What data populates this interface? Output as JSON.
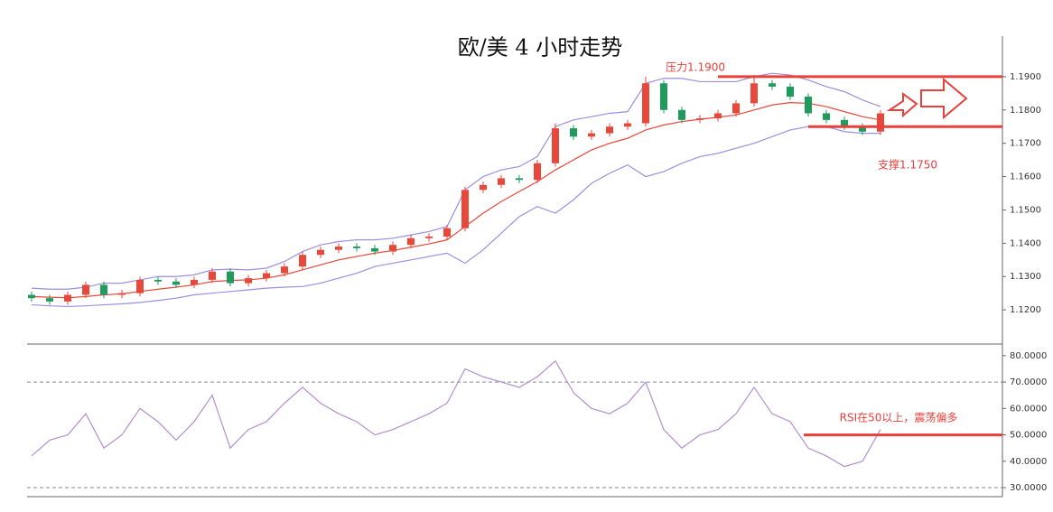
{
  "chart_data": [
    {
      "type": "candlestick",
      "title": "欧/美 4 小时走势",
      "open": [
        1.1245,
        1.1235,
        1.1225,
        1.1245,
        1.1275,
        1.1245,
        1.125,
        1.129,
        1.1285,
        1.1275,
        1.129,
        1.1315,
        1.128,
        1.1295,
        1.131,
        1.133,
        1.1365,
        1.138,
        1.139,
        1.1385,
        1.1375,
        1.1395,
        1.1415,
        1.142,
        1.1445,
        1.156,
        1.1575,
        1.1595,
        1.159,
        1.164,
        1.1745,
        1.172,
        1.173,
        1.175,
        1.176,
        1.188,
        1.18,
        1.177,
        1.1775,
        1.179,
        1.182,
        1.188,
        1.187,
        1.184,
        1.179,
        1.177,
        1.175,
        1.1735
      ],
      "high": [
        1.1255,
        1.1245,
        1.1255,
        1.1285,
        1.1285,
        1.126,
        1.13,
        1.13,
        1.1295,
        1.13,
        1.1325,
        1.1325,
        1.1305,
        1.132,
        1.134,
        1.1375,
        1.139,
        1.14,
        1.14,
        1.1395,
        1.1405,
        1.1425,
        1.143,
        1.1455,
        1.157,
        1.1585,
        1.1605,
        1.1605,
        1.165,
        1.176,
        1.1755,
        1.174,
        1.176,
        1.177,
        1.19,
        1.189,
        1.181,
        1.1785,
        1.18,
        1.183,
        1.1905,
        1.189,
        1.188,
        1.185,
        1.18,
        1.178,
        1.176,
        1.18
      ],
      "low": [
        1.1225,
        1.1215,
        1.1215,
        1.1235,
        1.1235,
        1.1235,
        1.124,
        1.1275,
        1.1265,
        1.1265,
        1.128,
        1.127,
        1.127,
        1.1285,
        1.13,
        1.132,
        1.1355,
        1.137,
        1.1375,
        1.1365,
        1.1365,
        1.1385,
        1.1405,
        1.141,
        1.1435,
        1.155,
        1.1565,
        1.158,
        1.158,
        1.163,
        1.171,
        1.171,
        1.172,
        1.174,
        1.175,
        1.179,
        1.176,
        1.176,
        1.1765,
        1.178,
        1.181,
        1.186,
        1.183,
        1.178,
        1.176,
        1.174,
        1.1725,
        1.1725
      ],
      "close": [
        1.1235,
        1.1225,
        1.1245,
        1.1275,
        1.1245,
        1.125,
        1.129,
        1.1285,
        1.1275,
        1.129,
        1.1315,
        1.128,
        1.1295,
        1.131,
        1.133,
        1.1365,
        1.138,
        1.139,
        1.1385,
        1.1375,
        1.1395,
        1.1415,
        1.142,
        1.1445,
        1.156,
        1.1575,
        1.1595,
        1.159,
        1.164,
        1.1745,
        1.172,
        1.173,
        1.175,
        1.176,
        1.188,
        1.18,
        1.177,
        1.1775,
        1.179,
        1.182,
        1.188,
        1.187,
        1.184,
        1.179,
        1.177,
        1.175,
        1.1735,
        1.179
      ],
      "up_color": "#e8483a",
      "down_color": "#1f9b5c",
      "series": [
        {
          "color": "#e8483a",
          "values": [
            1.124,
            1.1238,
            1.1236,
            1.124,
            1.1245,
            1.1248,
            1.1255,
            1.1262,
            1.1268,
            1.1275,
            1.1285,
            1.1288,
            1.129,
            1.1295,
            1.1305,
            1.132,
            1.1335,
            1.135,
            1.136,
            1.137,
            1.1378,
            1.1388,
            1.1398,
            1.141,
            1.145,
            1.149,
            1.1525,
            1.1555,
            1.1585,
            1.162,
            1.165,
            1.168,
            1.17,
            1.1715,
            1.174,
            1.1755,
            1.1765,
            1.1772,
            1.1778,
            1.1785,
            1.18,
            1.1815,
            1.1822,
            1.182,
            1.181,
            1.1795,
            1.178,
            1.177
          ]
        },
        {
          "color": "#9b8fe0",
          "values": [
            1.1265,
            1.1262,
            1.1262,
            1.1268,
            1.128,
            1.128,
            1.129,
            1.13,
            1.13,
            1.1305,
            1.132,
            1.1322,
            1.132,
            1.1325,
            1.1345,
            1.1375,
            1.1395,
            1.1405,
            1.141,
            1.141,
            1.1415,
            1.1425,
            1.1435,
            1.145,
            1.156,
            1.16,
            1.162,
            1.163,
            1.166,
            1.175,
            1.177,
            1.178,
            1.179,
            1.1795,
            1.188,
            1.1895,
            1.1895,
            1.1885,
            1.1885,
            1.1885,
            1.19,
            1.191,
            1.1905,
            1.189,
            1.187,
            1.1855,
            1.183,
            1.181
          ]
        },
        {
          "color": "#9b8fe0",
          "values": [
            1.1215,
            1.1212,
            1.121,
            1.1212,
            1.1215,
            1.1218,
            1.1222,
            1.1228,
            1.1235,
            1.1245,
            1.125,
            1.1255,
            1.126,
            1.1265,
            1.1268,
            1.127,
            1.128,
            1.1295,
            1.131,
            1.133,
            1.134,
            1.135,
            1.136,
            1.137,
            1.134,
            1.138,
            1.143,
            1.148,
            1.151,
            1.149,
            1.153,
            1.158,
            1.161,
            1.1635,
            1.16,
            1.1615,
            1.164,
            1.166,
            1.167,
            1.1685,
            1.17,
            1.172,
            1.174,
            1.175,
            1.175,
            1.1735,
            1.173,
            1.173
          ]
        }
      ],
      "hlines": [
        {
          "value": 1.19,
          "label": "压力1.1900"
        },
        {
          "value": 1.175,
          "label": "支撑1.1750"
        }
      ],
      "hline_color": "#e8403a",
      "ylim": [
        1.11,
        1.2
      ],
      "yticks": [
        {
          "value": 1.12,
          "label": "1.1200"
        },
        {
          "value": 1.13,
          "label": "1.1300"
        },
        {
          "value": 1.14,
          "label": "1.1400"
        },
        {
          "value": 1.15,
          "label": "1.1500"
        },
        {
          "value": 1.16,
          "label": "1.1600"
        },
        {
          "value": 1.17,
          "label": "1.1700"
        },
        {
          "value": 1.18,
          "label": "1.1800"
        },
        {
          "value": 1.19,
          "label": "1.1900"
        }
      ]
    },
    {
      "type": "line",
      "series": [
        {
          "color": "#b48fd0",
          "values": [
            42,
            48,
            50,
            58,
            45,
            50,
            60,
            55,
            48,
            55,
            65,
            45,
            52,
            55,
            62,
            68,
            62,
            58,
            55,
            50,
            52,
            55,
            58,
            62,
            75,
            72,
            70,
            68,
            72,
            78,
            66,
            60,
            58,
            62,
            70,
            52,
            45,
            50,
            52,
            58,
            68,
            58,
            55,
            45,
            42,
            38,
            40,
            52
          ]
        }
      ],
      "hlines": [
        {
          "value": 50,
          "label": "RSI在50以上，震荡偏多"
        }
      ],
      "hline_color": "#e8403a",
      "levels": [
        70,
        30
      ],
      "ylim": [
        26.6,
        84.4
      ],
      "yticks": [
        {
          "value": 30,
          "label": "30.0000"
        },
        {
          "value": 40,
          "label": "40.0000"
        },
        {
          "value": 50,
          "label": "50.0000"
        },
        {
          "value": 60,
          "label": "60.0000"
        },
        {
          "value": 70,
          "label": "70.0000"
        },
        {
          "value": 80,
          "label": "80.0000"
        }
      ]
    }
  ]
}
